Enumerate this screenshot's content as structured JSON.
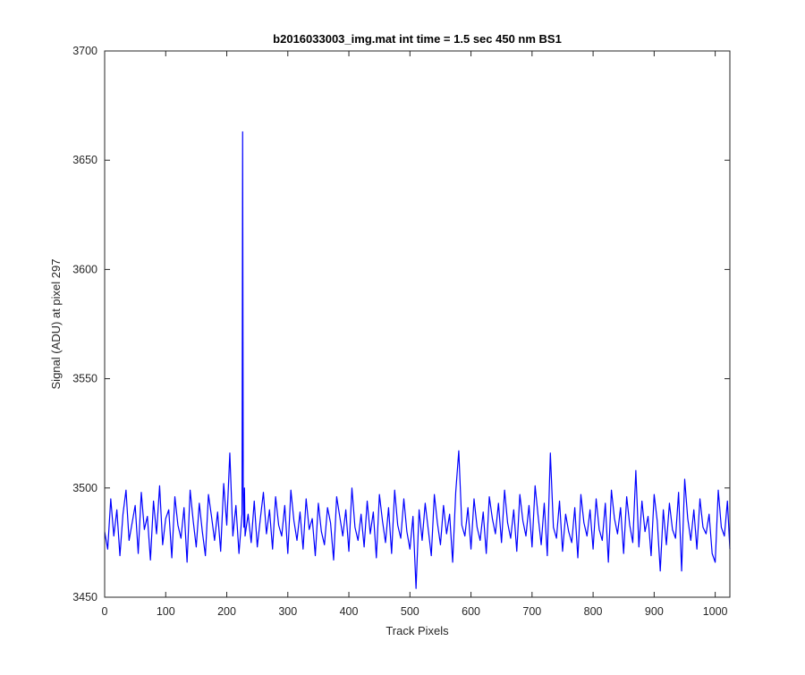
{
  "chart_data": {
    "type": "line",
    "title": "b2016033003_img.mat int time = 1.5 sec  450 nm BS1",
    "xlabel": "Track Pixels",
    "ylabel": "Signal (ADU) at pixel 297",
    "xlim": [
      0,
      1024
    ],
    "ylim": [
      3450,
      3700
    ],
    "xticks": [
      0,
      100,
      200,
      300,
      400,
      500,
      600,
      700,
      800,
      900,
      1000
    ],
    "yticks": [
      3450,
      3500,
      3550,
      3600,
      3650,
      3700
    ],
    "grid": false,
    "legend": "none",
    "series": [
      {
        "color": "#0000ff",
        "x": [
          0,
          5,
          10,
          15,
          20,
          25,
          30,
          35,
          40,
          45,
          50,
          55,
          60,
          65,
          70,
          75,
          80,
          85,
          90,
          95,
          100,
          105,
          110,
          115,
          120,
          125,
          130,
          135,
          140,
          145,
          150,
          155,
          160,
          165,
          170,
          175,
          180,
          185,
          190,
          195,
          200,
          205,
          210,
          215,
          220,
          225,
          226,
          227,
          228,
          229,
          230,
          235,
          240,
          245,
          250,
          255,
          260,
          265,
          270,
          275,
          280,
          285,
          290,
          295,
          300,
          305,
          310,
          315,
          320,
          325,
          330,
          335,
          340,
          345,
          350,
          355,
          360,
          365,
          370,
          375,
          380,
          385,
          390,
          395,
          400,
          405,
          410,
          415,
          420,
          425,
          430,
          435,
          440,
          445,
          450,
          455,
          460,
          465,
          470,
          475,
          480,
          485,
          490,
          495,
          500,
          505,
          510,
          515,
          520,
          525,
          530,
          535,
          540,
          545,
          550,
          555,
          560,
          565,
          570,
          575,
          580,
          585,
          590,
          595,
          600,
          605,
          610,
          615,
          620,
          625,
          630,
          635,
          640,
          645,
          650,
          655,
          660,
          665,
          670,
          675,
          680,
          685,
          690,
          695,
          700,
          705,
          710,
          715,
          720,
          725,
          730,
          735,
          740,
          745,
          750,
          755,
          760,
          765,
          770,
          775,
          780,
          785,
          790,
          795,
          800,
          805,
          810,
          815,
          820,
          825,
          830,
          835,
          840,
          845,
          850,
          855,
          860,
          865,
          870,
          875,
          880,
          885,
          890,
          895,
          900,
          905,
          910,
          915,
          920,
          925,
          930,
          935,
          940,
          945,
          950,
          955,
          960,
          965,
          970,
          975,
          980,
          985,
          990,
          995,
          1000,
          1005,
          1010,
          1015,
          1020,
          1024
        ],
        "y": [
          3480,
          3472,
          3495,
          3478,
          3490,
          3469,
          3488,
          3499,
          3476,
          3484,
          3492,
          3470,
          3498,
          3481,
          3487,
          3467,
          3494,
          3479,
          3501,
          3474,
          3486,
          3490,
          3468,
          3496,
          3483,
          3477,
          3491,
          3466,
          3499,
          3485,
          3473,
          3493,
          3480,
          3469,
          3497,
          3487,
          3476,
          3489,
          3471,
          3502,
          3483,
          3516,
          3478,
          3492,
          3470,
          3488,
          3663,
          3498,
          3482,
          3500,
          3478,
          3488,
          3475,
          3494,
          3473,
          3486,
          3498,
          3479,
          3490,
          3472,
          3496,
          3483,
          3478,
          3492,
          3470,
          3499,
          3485,
          3476,
          3489,
          3472,
          3495,
          3481,
          3486,
          3469,
          3493,
          3480,
          3474,
          3491,
          3484,
          3467,
          3496,
          3487,
          3478,
          3490,
          3471,
          3500,
          3482,
          3476,
          3488,
          3473,
          3494,
          3479,
          3489,
          3468,
          3497,
          3485,
          3475,
          3491,
          3470,
          3499,
          3483,
          3477,
          3495,
          3480,
          3472,
          3487,
          3454,
          3490,
          3476,
          3493,
          3481,
          3469,
          3497,
          3484,
          3474,
          3492,
          3479,
          3488,
          3466,
          3498,
          3517,
          3483,
          3478,
          3491,
          3472,
          3495,
          3482,
          3476,
          3489,
          3470,
          3496,
          3486,
          3479,
          3493,
          3475,
          3499,
          3484,
          3477,
          3490,
          3471,
          3497,
          3485,
          3478,
          3492,
          3473,
          3501,
          3487,
          3474,
          3493,
          3469,
          3516,
          3482,
          3477,
          3494,
          3471,
          3488,
          3480,
          3475,
          3491,
          3468,
          3497,
          3484,
          3478,
          3490,
          3472,
          3495,
          3481,
          3476,
          3493,
          3466,
          3499,
          3486,
          3479,
          3491,
          3470,
          3496,
          3483,
          3475,
          3508,
          3473,
          3494,
          3480,
          3487,
          3469,
          3497,
          3485,
          3462,
          3490,
          3474,
          3493,
          3481,
          3477,
          3498,
          3462,
          3504,
          3486,
          3476,
          3490,
          3472,
          3495,
          3482,
          3479,
          3488,
          3470,
          3466,
          3499,
          3482,
          3478,
          3494,
          3472
        ]
      }
    ]
  }
}
